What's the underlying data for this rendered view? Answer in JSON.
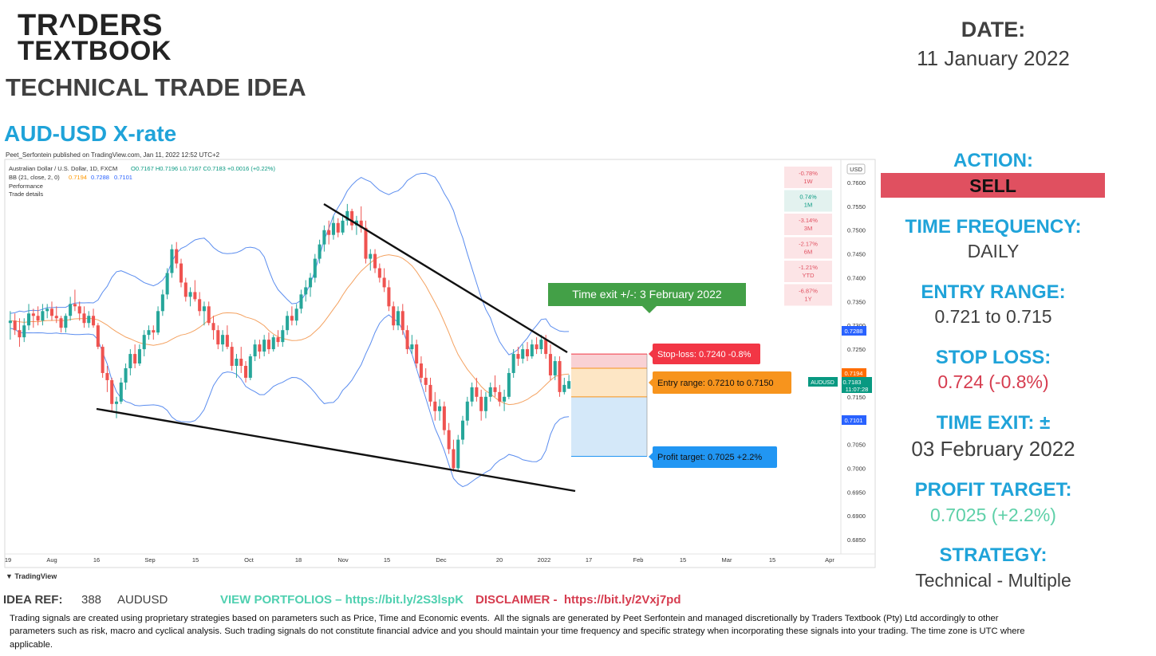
{
  "logo": {
    "line1": "TR^DERS",
    "line2": "TEXTBOOK"
  },
  "header": {
    "technical_title": "TECHNICAL TRADE IDEA",
    "pair_title": "AUD-USD X-rate",
    "date_label": "DATE:",
    "date_value": "11 January 2022"
  },
  "panel": {
    "action_label": "ACTION:",
    "action_value": "SELL",
    "action_color": "#e05060",
    "time_frequency_label": "TIME FREQUENCY:",
    "time_frequency_value": "DAILY",
    "entry_range_label": "ENTRY RANGE:",
    "entry_range_value": "0.721 to 0.715",
    "stop_loss_label": "STOP LOSS:",
    "stop_loss_value": "0.724 (-0.8%)",
    "stop_loss_color": "#d63c4f",
    "time_exit_label": "TIME EXIT: ±",
    "time_exit_value": "03 February 2022",
    "profit_target_label": "PROFIT TARGET:",
    "profit_target_value": "0.7025 (+2.2%)",
    "profit_target_color": "#5ed0a8",
    "strategy_label": "STRATEGY:",
    "strategy_value": "Technical - Multiple"
  },
  "chart_header": {
    "published": "Peet_Serfontein published on TradingView.com, Jan 11, 2022 12:52 UTC+2",
    "symbol_line": "Australian Dollar / U.S. Dollar, 1D, FXCM",
    "ohlc": "O0.7167  H0.7196  L0.7167  C0.7183  +0.0016 (+0.22%)",
    "bb_line": "BB (21, close, 2, 0)",
    "bb_values": [
      "0.7194",
      "0.7288",
      "0.7101"
    ],
    "performance": "Performance",
    "trade_details": "Trade details",
    "currency": "USD",
    "tv_brand": "TradingView"
  },
  "performance_table": [
    {
      "value": "-0.78%",
      "period": "1W"
    },
    {
      "value": "0.74%",
      "period": "1M"
    },
    {
      "value": "-3.14%",
      "period": "3M"
    },
    {
      "value": "-2.17%",
      "period": "6M"
    },
    {
      "value": "-1.21%",
      "period": "YTD"
    },
    {
      "value": "-6.87%",
      "period": "1Y"
    }
  ],
  "annotations": {
    "time_exit": "Time exit +/-: 3 February 2022",
    "stop_loss": "Stop-loss: 0.7240 -0.8%",
    "entry_range": "Entry range: 0.7210 to 0.7150",
    "profit_target": "Profit target: 0.7025 +2.2%"
  },
  "price_labels": {
    "upper_band": "0.7288",
    "middle_band": "0.7194",
    "last_price": "0.7183",
    "countdown": "11:07:28",
    "lower_band": "0.7101",
    "symbol_tag": "AUDUSD"
  },
  "chart_data": {
    "type": "candlestick",
    "symbol": "AUDUSD",
    "timeframe": "1D",
    "y_ticks": [
      0.76,
      0.755,
      0.75,
      0.745,
      0.74,
      0.735,
      0.73,
      0.725,
      0.72,
      0.715,
      0.71,
      0.705,
      0.7,
      0.695,
      0.69,
      0.685
    ],
    "x_ticks": [
      "19",
      "Aug",
      "16",
      "Sep",
      "15",
      "Oct",
      "18",
      "Nov",
      "15",
      "Dec",
      "20",
      "2022",
      "17",
      "Feb",
      "15",
      "Mar",
      "15",
      "Apr"
    ],
    "ylim": [
      0.683,
      0.7625
    ],
    "levels": {
      "stop_loss": 0.724,
      "entry_high": 0.721,
      "entry_low": 0.715,
      "profit_target": 0.7025
    },
    "candles": [
      [
        0.7305,
        0.733,
        0.727,
        0.731
      ],
      [
        0.731,
        0.7325,
        0.728,
        0.729
      ],
      [
        0.729,
        0.7315,
        0.7255,
        0.7275
      ],
      [
        0.7275,
        0.7315,
        0.7265,
        0.73
      ],
      [
        0.73,
        0.7345,
        0.729,
        0.7325
      ],
      [
        0.7325,
        0.7335,
        0.7295,
        0.732
      ],
      [
        0.732,
        0.734,
        0.73,
        0.731
      ],
      [
        0.731,
        0.7345,
        0.73,
        0.733
      ],
      [
        0.733,
        0.7345,
        0.7315,
        0.7335
      ],
      [
        0.7335,
        0.735,
        0.731,
        0.732
      ],
      [
        0.732,
        0.734,
        0.7305,
        0.7315
      ],
      [
        0.7315,
        0.732,
        0.7285,
        0.7295
      ],
      [
        0.7295,
        0.7325,
        0.7285,
        0.732
      ],
      [
        0.732,
        0.736,
        0.731,
        0.7345
      ],
      [
        0.7345,
        0.7375,
        0.733,
        0.734
      ],
      [
        0.734,
        0.735,
        0.731,
        0.7325
      ],
      [
        0.7325,
        0.734,
        0.7295,
        0.7305
      ],
      [
        0.7305,
        0.733,
        0.7295,
        0.732
      ],
      [
        0.732,
        0.7335,
        0.7295,
        0.73
      ],
      [
        0.73,
        0.7305,
        0.725,
        0.7255
      ],
      [
        0.7255,
        0.726,
        0.719,
        0.72
      ],
      [
        0.72,
        0.7215,
        0.716,
        0.7185
      ],
      [
        0.7185,
        0.719,
        0.712,
        0.7135
      ],
      [
        0.7135,
        0.715,
        0.7105,
        0.714
      ],
      [
        0.714,
        0.719,
        0.7135,
        0.718
      ],
      [
        0.718,
        0.722,
        0.7165,
        0.721
      ],
      [
        0.721,
        0.725,
        0.7195,
        0.724
      ],
      [
        0.724,
        0.726,
        0.721,
        0.722
      ],
      [
        0.722,
        0.726,
        0.7215,
        0.725
      ],
      [
        0.725,
        0.729,
        0.7235,
        0.728
      ],
      [
        0.728,
        0.73,
        0.727,
        0.729
      ],
      [
        0.729,
        0.73,
        0.727,
        0.7285
      ],
      [
        0.7285,
        0.734,
        0.728,
        0.733
      ],
      [
        0.733,
        0.7375,
        0.732,
        0.7365
      ],
      [
        0.7365,
        0.742,
        0.7355,
        0.741
      ],
      [
        0.741,
        0.747,
        0.74,
        0.746
      ],
      [
        0.746,
        0.7475,
        0.742,
        0.743
      ],
      [
        0.743,
        0.744,
        0.738,
        0.739
      ],
      [
        0.739,
        0.74,
        0.735,
        0.736
      ],
      [
        0.736,
        0.738,
        0.734,
        0.737
      ],
      [
        0.737,
        0.7395,
        0.735,
        0.7355
      ],
      [
        0.7355,
        0.737,
        0.732,
        0.733
      ],
      [
        0.733,
        0.735,
        0.73,
        0.734
      ],
      [
        0.734,
        0.735,
        0.73,
        0.7305
      ],
      [
        0.7305,
        0.732,
        0.727,
        0.729
      ],
      [
        0.729,
        0.73,
        0.725,
        0.726
      ],
      [
        0.726,
        0.729,
        0.7245,
        0.728
      ],
      [
        0.728,
        0.73,
        0.725,
        0.7255
      ],
      [
        0.7255,
        0.7265,
        0.7205,
        0.7215
      ],
      [
        0.7215,
        0.724,
        0.719,
        0.723
      ],
      [
        0.723,
        0.7255,
        0.72,
        0.7215
      ],
      [
        0.7215,
        0.7225,
        0.718,
        0.719
      ],
      [
        0.719,
        0.724,
        0.7185,
        0.7235
      ],
      [
        0.7235,
        0.727,
        0.7225,
        0.726
      ],
      [
        0.726,
        0.727,
        0.723,
        0.7245
      ],
      [
        0.7245,
        0.728,
        0.7235,
        0.727
      ],
      [
        0.727,
        0.7285,
        0.724,
        0.725
      ],
      [
        0.725,
        0.728,
        0.7245,
        0.7275
      ],
      [
        0.7275,
        0.729,
        0.7255,
        0.7265
      ],
      [
        0.7265,
        0.73,
        0.7255,
        0.729
      ],
      [
        0.729,
        0.733,
        0.728,
        0.732
      ],
      [
        0.732,
        0.734,
        0.73,
        0.731
      ],
      [
        0.731,
        0.7345,
        0.73,
        0.7335
      ],
      [
        0.7335,
        0.7375,
        0.7325,
        0.7365
      ],
      [
        0.7365,
        0.7395,
        0.735,
        0.738
      ],
      [
        0.738,
        0.741,
        0.736,
        0.74
      ],
      [
        0.74,
        0.745,
        0.739,
        0.744
      ],
      [
        0.744,
        0.748,
        0.743,
        0.747
      ],
      [
        0.747,
        0.751,
        0.7455,
        0.75
      ],
      [
        0.75,
        0.752,
        0.747,
        0.749
      ],
      [
        0.749,
        0.753,
        0.748,
        0.7515
      ],
      [
        0.7515,
        0.7525,
        0.7485,
        0.7495
      ],
      [
        0.7495,
        0.753,
        0.749,
        0.752
      ],
      [
        0.752,
        0.7555,
        0.751,
        0.754
      ],
      [
        0.754,
        0.7545,
        0.75,
        0.751
      ],
      [
        0.751,
        0.753,
        0.749,
        0.752
      ],
      [
        0.752,
        0.755,
        0.7495,
        0.7505
      ],
      [
        0.7505,
        0.752,
        0.743,
        0.744
      ],
      [
        0.744,
        0.746,
        0.7415,
        0.745
      ],
      [
        0.745,
        0.746,
        0.741,
        0.742
      ],
      [
        0.742,
        0.743,
        0.739,
        0.74
      ],
      [
        0.74,
        0.742,
        0.737,
        0.738
      ],
      [
        0.738,
        0.7395,
        0.733,
        0.734
      ],
      [
        0.734,
        0.735,
        0.729,
        0.73
      ],
      [
        0.73,
        0.734,
        0.729,
        0.733
      ],
      [
        0.733,
        0.7345,
        0.728,
        0.729
      ],
      [
        0.729,
        0.73,
        0.724,
        0.725
      ],
      [
        0.725,
        0.728,
        0.724,
        0.726
      ],
      [
        0.726,
        0.727,
        0.721,
        0.722
      ],
      [
        0.722,
        0.7235,
        0.718,
        0.719
      ],
      [
        0.719,
        0.721,
        0.716,
        0.7175
      ],
      [
        0.7175,
        0.719,
        0.713,
        0.714
      ],
      [
        0.714,
        0.716,
        0.71,
        0.712
      ],
      [
        0.712,
        0.7145,
        0.71,
        0.713
      ],
      [
        0.713,
        0.714,
        0.707,
        0.708
      ],
      [
        0.708,
        0.7095,
        0.703,
        0.704
      ],
      [
        0.704,
        0.706,
        0.6993,
        0.7
      ],
      [
        0.7,
        0.707,
        0.6995,
        0.706
      ],
      [
        0.706,
        0.711,
        0.705,
        0.71
      ],
      [
        0.71,
        0.715,
        0.709,
        0.714
      ],
      [
        0.714,
        0.718,
        0.713,
        0.717
      ],
      [
        0.717,
        0.719,
        0.714,
        0.715
      ],
      [
        0.715,
        0.7165,
        0.71,
        0.712
      ],
      [
        0.712,
        0.716,
        0.7105,
        0.715
      ],
      [
        0.715,
        0.718,
        0.714,
        0.717
      ],
      [
        0.717,
        0.7195,
        0.715,
        0.716
      ],
      [
        0.716,
        0.7175,
        0.713,
        0.714
      ],
      [
        0.714,
        0.7165,
        0.712,
        0.715
      ],
      [
        0.715,
        0.721,
        0.7145,
        0.72
      ],
      [
        0.72,
        0.725,
        0.719,
        0.724
      ],
      [
        0.724,
        0.7255,
        0.7215,
        0.723
      ],
      [
        0.723,
        0.726,
        0.722,
        0.725
      ],
      [
        0.725,
        0.7265,
        0.7225,
        0.7235
      ],
      [
        0.7235,
        0.727,
        0.723,
        0.726
      ],
      [
        0.726,
        0.7275,
        0.724,
        0.725
      ],
      [
        0.725,
        0.728,
        0.724,
        0.727
      ],
      [
        0.727,
        0.728,
        0.723,
        0.724
      ],
      [
        0.724,
        0.726,
        0.7185,
        0.7195
      ],
      [
        0.7195,
        0.7235,
        0.7185,
        0.7225
      ],
      [
        0.7225,
        0.7235,
        0.715,
        0.716
      ],
      [
        0.716,
        0.719,
        0.7155,
        0.7175
      ],
      [
        0.7167,
        0.7196,
        0.7167,
        0.7183
      ]
    ]
  }
}
